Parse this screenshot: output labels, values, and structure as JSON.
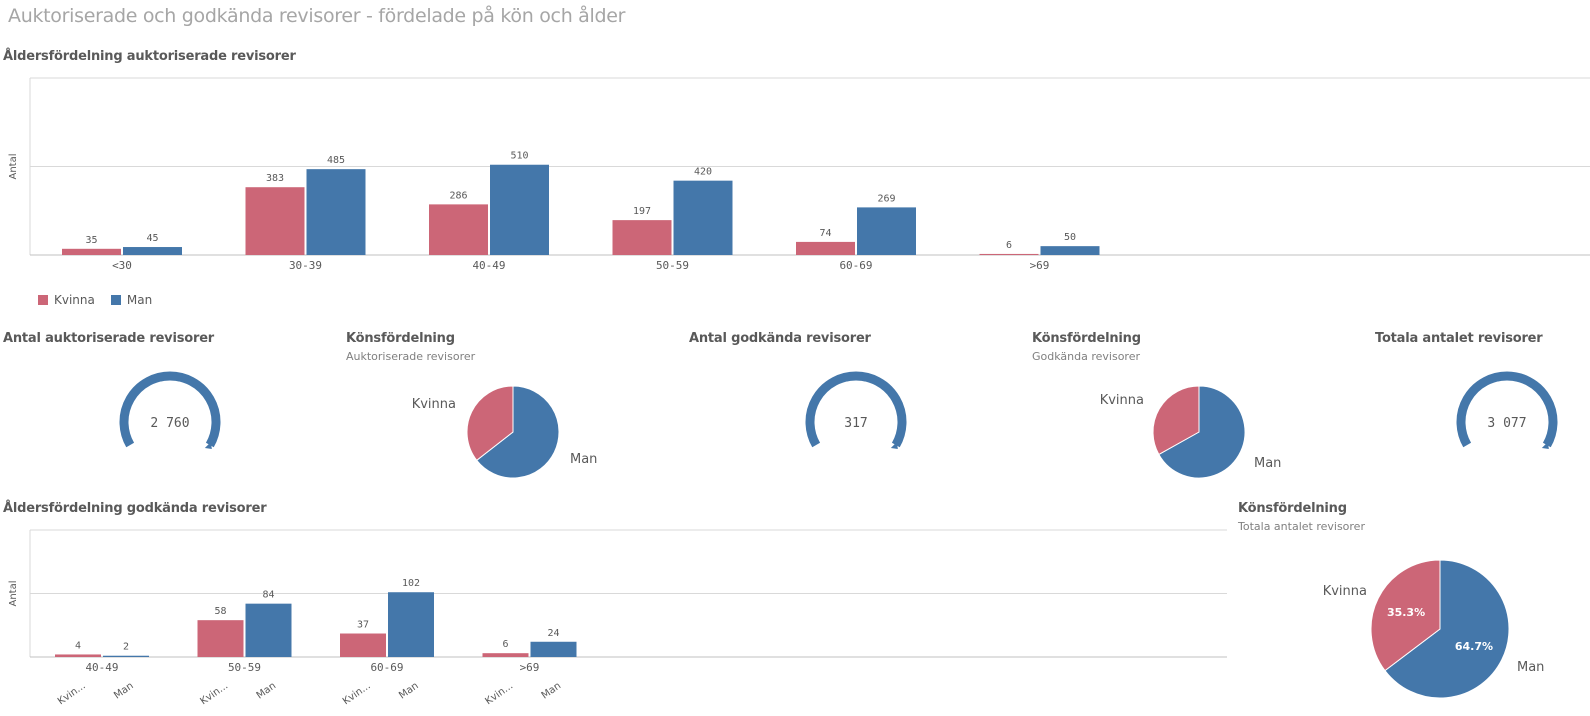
{
  "page": {
    "title": "Auktoriserade och godkända revisorer - fördelade på kön och ålder"
  },
  "colors": {
    "kvinna": "#cc6677",
    "man": "#4477aa",
    "track": "#4477aa"
  },
  "legend": {
    "items": [
      {
        "label": "Kvinna",
        "color": "#cc6677"
      },
      {
        "label": "Man",
        "color": "#4477aa"
      }
    ]
  },
  "chart1": {
    "title": "Åldersfördelning auktoriserade revisorer"
  },
  "chart2": {
    "title": "Åldersfördelning godkända revisorer"
  },
  "gauge1": {
    "title": "Antal auktoriserade revisorer",
    "value_text": "2 760"
  },
  "gauge2": {
    "title": "Antal godkända revisorer",
    "value_text": "317"
  },
  "gauge3": {
    "title": "Totala antalet revisorer",
    "value_text": "3 077"
  },
  "pie1": {
    "title": "Könsfördelning",
    "subtitle": "Auktoriserade revisorer"
  },
  "pie2": {
    "title": "Könsfördelning",
    "subtitle": "Godkända revisorer"
  },
  "pie3": {
    "title": "Könsfördelning",
    "subtitle": "Totala antalet revisorer"
  },
  "chart_data": [
    {
      "type": "bar",
      "title": "Åldersfördelning auktoriserade revisorer",
      "xlabel": "",
      "ylabel": "Antal",
      "categories": [
        "<30",
        "30-39",
        "40-49",
        "50-59",
        "60-69",
        ">69"
      ],
      "series": [
        {
          "name": "Kvinna",
          "values": [
            35,
            383,
            286,
            197,
            74,
            6
          ]
        },
        {
          "name": "Man",
          "values": [
            45,
            485,
            510,
            420,
            269,
            50
          ]
        }
      ],
      "ylim": [
        0,
        1000
      ],
      "grid": true,
      "legend": "bottom-left"
    },
    {
      "type": "bar",
      "title": "Åldersfördelning godkända revisorer",
      "xlabel": "",
      "ylabel": "Antal",
      "categories": [
        "40-49",
        "50-59",
        "60-69",
        ">69"
      ],
      "series_tick_labels": [
        "Kvin...",
        "Man"
      ],
      "series": [
        {
          "name": "Kvinna",
          "values": [
            4,
            58,
            37,
            6
          ]
        },
        {
          "name": "Man",
          "values": [
            2,
            84,
            102,
            24
          ]
        }
      ],
      "ylim": [
        0,
        200
      ],
      "grid": true
    },
    {
      "type": "pie",
      "title": "Könsfördelning",
      "subtitle": "Auktoriserade revisorer",
      "labels": [
        "Kvinna",
        "Man"
      ],
      "values": [
        981,
        1779
      ]
    },
    {
      "type": "pie",
      "title": "Könsfördelning",
      "subtitle": "Godkända revisorer",
      "labels": [
        "Kvinna",
        "Man"
      ],
      "values": [
        105,
        212
      ]
    },
    {
      "type": "pie",
      "title": "Könsfördelning",
      "subtitle": "Totala antalet revisorer",
      "labels": [
        "Kvinna",
        "Man"
      ],
      "values": [
        35.3,
        64.7
      ],
      "value_labels": [
        "35.3%",
        "64.7%"
      ]
    }
  ]
}
